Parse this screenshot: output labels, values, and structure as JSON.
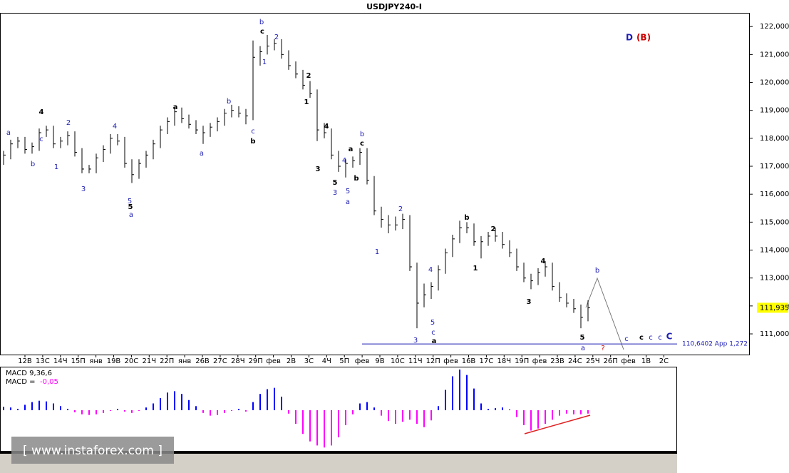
{
  "chart_data": {
    "type": "ohlc",
    "title": "USDJPY240-I",
    "ylim": [
      110.26,
      122.49
    ],
    "yticks": [
      {
        "value": 111,
        "label": "111,000"
      },
      {
        "value": 112,
        "label": "112,000"
      },
      {
        "value": 113,
        "label": "113,000"
      },
      {
        "value": 114,
        "label": "114,000"
      },
      {
        "value": 115,
        "label": "115,000"
      },
      {
        "value": 116,
        "label": "116,000"
      },
      {
        "value": 117,
        "label": "117,000"
      },
      {
        "value": 118,
        "label": "118,000"
      },
      {
        "value": 119,
        "label": "119,000"
      },
      {
        "value": 120,
        "label": "120,000"
      },
      {
        "value": 121,
        "label": "121,000"
      },
      {
        "value": 122,
        "label": "122,000"
      }
    ],
    "x_labels": [
      "12В",
      "13С",
      "14Ч",
      "15П",
      "янв",
      "19В",
      "20С",
      "21Ч",
      "22П",
      "янв",
      "26В",
      "27С",
      "28Ч",
      "29П",
      "фев",
      "2В",
      "3С",
      "4Ч",
      "5П",
      "фев",
      "9В",
      "10С",
      "11Ч",
      "12П",
      "фев",
      "16В",
      "17С",
      "18Ч",
      "19П",
      "фев",
      "23В",
      "24С",
      "25Ч",
      "26П",
      "фев",
      "1В",
      "2С"
    ],
    "color": "#000000",
    "high": [
      117.55,
      117.95,
      118.05,
      118.05,
      117.85,
      118.35,
      118.45,
      118.45,
      118.05,
      118.25,
      118.25,
      117.65,
      117.05,
      117.45,
      117.75,
      118.15,
      118.15,
      118.05,
      117.25,
      117.25,
      117.55,
      117.95,
      118.45,
      118.75,
      119.1,
      119.1,
      118.85,
      118.65,
      118.45,
      118.55,
      118.75,
      119.05,
      119.2,
      119.15,
      119.05,
      121.5,
      121.3,
      121.7,
      121.55,
      121.55,
      121.15,
      120.75,
      120.45,
      120.05,
      119.75,
      118.55,
      118.35,
      117.55,
      117.25,
      117.35,
      117.65,
      117.65,
      116.65,
      115.55,
      115.25,
      115.2,
      115.3,
      115.25,
      113.55,
      112.8,
      112.85,
      113.45,
      114.05,
      114.55,
      115.05,
      115.0,
      114.95,
      114.5,
      114.65,
      114.8,
      114.65,
      114.35,
      114.05,
      113.55,
      113.15,
      113.35,
      113.6,
      113.55,
      112.85,
      112.45,
      112.25,
      112.05,
      112.2
    ],
    "low": [
      117.05,
      117.25,
      117.65,
      117.45,
      117.45,
      117.55,
      118.05,
      117.65,
      117.65,
      117.75,
      117.35,
      116.75,
      116.75,
      116.75,
      117.15,
      117.45,
      117.75,
      116.95,
      116.4,
      116.55,
      116.95,
      117.25,
      117.65,
      118.15,
      118.45,
      118.55,
      118.35,
      118.15,
      117.8,
      118.05,
      118.25,
      118.45,
      118.75,
      118.75,
      118.5,
      118.65,
      120.6,
      121.0,
      121.15,
      120.85,
      120.45,
      120.15,
      119.75,
      119.45,
      117.9,
      118.0,
      117.25,
      116.8,
      116.6,
      116.95,
      117.05,
      116.35,
      115.25,
      114.8,
      114.6,
      114.7,
      114.75,
      113.25,
      111.2,
      111.95,
      112.25,
      112.55,
      113.15,
      113.75,
      114.25,
      114.6,
      114.15,
      113.7,
      114.15,
      114.3,
      114.05,
      113.75,
      113.25,
      112.85,
      112.6,
      112.75,
      113.05,
      112.55,
      112.15,
      111.95,
      111.75,
      111.2,
      111.45
    ],
    "close": [
      117.4,
      117.8,
      117.9,
      117.6,
      117.7,
      118.2,
      118.3,
      117.8,
      117.9,
      118.1,
      117.5,
      116.9,
      116.9,
      117.3,
      117.6,
      118.0,
      117.9,
      117.1,
      116.7,
      117.1,
      117.4,
      117.8,
      118.3,
      118.6,
      118.95,
      118.7,
      118.5,
      118.3,
      118.2,
      118.4,
      118.6,
      118.9,
      119.0,
      118.9,
      118.8,
      120.9,
      121.1,
      121.3,
      121.4,
      121.0,
      120.6,
      120.3,
      119.9,
      119.6,
      118.3,
      118.2,
      117.4,
      117.0,
      117.1,
      117.2,
      117.5,
      116.5,
      115.4,
      115.1,
      114.9,
      114.9,
      115.1,
      113.4,
      112.1,
      112.4,
      112.7,
      113.3,
      113.9,
      114.4,
      114.8,
      114.8,
      114.3,
      114.3,
      114.5,
      114.5,
      114.2,
      113.9,
      113.4,
      113.0,
      112.9,
      113.2,
      113.4,
      112.7,
      112.3,
      112.1,
      111.9,
      111.6,
      111.935
    ],
    "last": {
      "value": 111.935,
      "label": "111,935",
      "color": "#ffff00"
    },
    "level": {
      "value": 110.6402,
      "label": "110,6402 App 1,272",
      "color": "#1e1eb4"
    },
    "annotations": [
      {
        "text": "a",
        "color": "#1e1eb4"
      },
      {
        "text": "b",
        "color": "#1e1eb4"
      },
      {
        "text": "4",
        "color": "#000000"
      },
      {
        "text": "c",
        "color": "#1e1eb4"
      },
      {
        "text": "1",
        "color": "#1e1eb4"
      },
      {
        "text": "2",
        "color": "#1e1eb4"
      },
      {
        "text": "3",
        "color": "#1e1eb4"
      },
      {
        "text": "4",
        "color": "#1e1eb4"
      },
      {
        "text": "5",
        "color": "#1e1eb4"
      },
      {
        "text": "5",
        "color": "#000000"
      },
      {
        "text": "a",
        "color": "#1e1eb4"
      },
      {
        "text": "a",
        "color": "#000000"
      },
      {
        "text": "a",
        "color": "#1e1eb4"
      },
      {
        "text": "b",
        "color": "#1e1eb4"
      },
      {
        "text": "c",
        "color": "#1e1eb4"
      },
      {
        "text": "b",
        "color": "#000000"
      },
      {
        "text": "b",
        "color": "#1e1eb4"
      },
      {
        "text": "c",
        "color": "#000000"
      },
      {
        "text": "1",
        "color": "#1e1eb4"
      },
      {
        "text": "2",
        "color": "#1e1eb4"
      },
      {
        "text": "2",
        "color": "#000000"
      },
      {
        "text": "1",
        "color": "#000000"
      },
      {
        "text": "3",
        "color": "#000000"
      },
      {
        "text": "4",
        "color": "#000000"
      },
      {
        "text": "5",
        "color": "#000000"
      },
      {
        "text": "3",
        "color": "#1e1eb4"
      },
      {
        "text": "4",
        "color": "#1e1eb4"
      },
      {
        "text": "5",
        "color": "#1e1eb4"
      },
      {
        "text": "a",
        "color": "#1e1eb4"
      },
      {
        "text": "a",
        "color": "#000000"
      },
      {
        "text": "b",
        "color": "#000000"
      },
      {
        "text": "b",
        "color": "#1e1eb4"
      },
      {
        "text": "c",
        "color": "#000000"
      },
      {
        "text": "1",
        "color": "#1e1eb4"
      },
      {
        "text": "2",
        "color": "#1e1eb4"
      },
      {
        "text": "3",
        "color": "#1e1eb4"
      },
      {
        "text": "4",
        "color": "#1e1eb4"
      },
      {
        "text": "5",
        "color": "#1e1eb4"
      },
      {
        "text": "c",
        "color": "#1e1eb4"
      },
      {
        "text": "a",
        "color": "#000000"
      },
      {
        "text": "b",
        "color": "#000000"
      },
      {
        "text": "2",
        "color": "#000000"
      },
      {
        "text": "1",
        "color": "#000000"
      },
      {
        "text": "3",
        "color": "#000000"
      },
      {
        "text": "4",
        "color": "#000000"
      },
      {
        "text": "5",
        "color": "#000000"
      },
      {
        "text": "a",
        "color": "#1e1eb4"
      },
      {
        "text": "b",
        "color": "#1e1eb4"
      },
      {
        "text": "?",
        "color": "#cc0000"
      },
      {
        "text": "c",
        "color": "#1e1eb4"
      },
      {
        "text": "c",
        "color": "#000000"
      },
      {
        "text": "c",
        "color": "#1e1eb4"
      },
      {
        "text": "c",
        "color": "#1e1eb4"
      },
      {
        "text": "C",
        "color": "#1e1eb4"
      },
      {
        "text": "D",
        "color": "#1e1eb4"
      },
      {
        "text": "(B)",
        "color": "#cc0000"
      }
    ],
    "macd": {
      "title": "MACD 9,36,6",
      "value_caption": "MACD =",
      "value": -0.05,
      "value_label": "-0,05",
      "color": "#ff00ff",
      "value_color": "#ff00ff",
      "positive_color": "#0000ff",
      "ylim": [
        -0.6,
        0.6
      ],
      "values": [
        0.05,
        0.04,
        0.02,
        0.08,
        0.12,
        0.14,
        0.13,
        0.1,
        0.06,
        0.02,
        -0.03,
        -0.06,
        -0.07,
        -0.06,
        -0.04,
        -0.01,
        0.02,
        -0.02,
        -0.04,
        -0.01,
        0.04,
        0.1,
        0.18,
        0.26,
        0.28,
        0.24,
        0.15,
        0.06,
        -0.04,
        -0.08,
        -0.07,
        -0.04,
        -0.01,
        0.02,
        -0.02,
        0.12,
        0.24,
        0.31,
        0.33,
        0.2,
        -0.05,
        -0.2,
        -0.35,
        -0.46,
        -0.52,
        -0.55,
        -0.52,
        -0.4,
        -0.22,
        -0.06,
        0.1,
        0.12,
        0.04,
        -0.08,
        -0.16,
        -0.2,
        -0.17,
        -0.14,
        -0.2,
        -0.25,
        -0.15,
        0.06,
        0.3,
        0.5,
        0.6,
        0.52,
        0.32,
        0.1,
        0.02,
        0.03,
        0.04,
        0.01,
        -0.1,
        -0.22,
        -0.3,
        -0.27,
        -0.2,
        -0.14,
        -0.08,
        -0.05,
        -0.06,
        -0.06,
        -0.05
      ]
    },
    "watermark": "[ www.instaforex.com ]"
  }
}
